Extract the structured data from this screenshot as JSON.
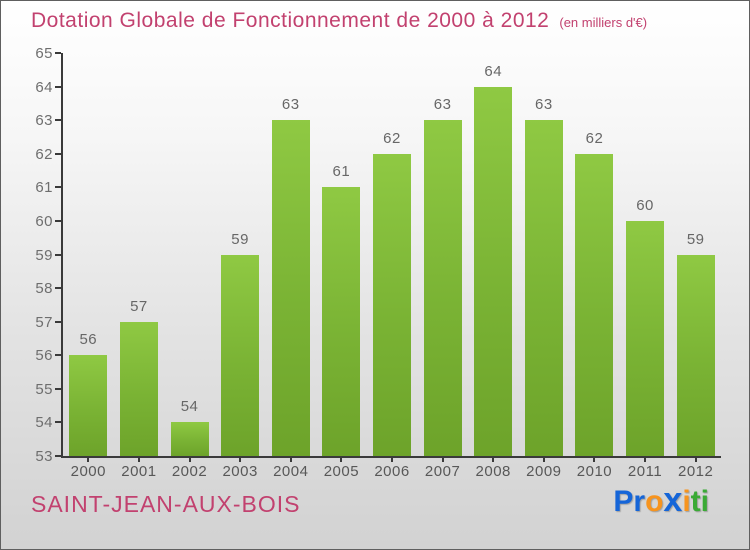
{
  "header": {
    "title": "Dotation Globale de Fonctionnement de 2000 à 2012",
    "subtitle": "(en milliers d'€)"
  },
  "chart_data": {
    "type": "bar",
    "title": "Dotation Globale de Fonctionnement de 2000 à 2012",
    "subtitle": "(en milliers d'€)",
    "categories": [
      "2000",
      "2001",
      "2002",
      "2003",
      "2004",
      "2005",
      "2006",
      "2007",
      "2008",
      "2009",
      "2010",
      "2011",
      "2012"
    ],
    "values": [
      56,
      57,
      54,
      59,
      63,
      61,
      62,
      63,
      64,
      63,
      62,
      60,
      59
    ],
    "xlabel": "",
    "ylabel": "",
    "ylim": [
      53,
      65
    ],
    "ytick_step": 1,
    "grid": false,
    "legend": "none",
    "bar_color_top": "#8fc943",
    "bar_color_bottom": "#6da32a",
    "value_label_color": "#676767",
    "axis_color": "#3a3a3a"
  },
  "footer": {
    "commune": "SAINT-JEAN-AUX-BOIS",
    "logo_word": "Proxiti",
    "logo_letters": [
      {
        "ch": "P",
        "color": "#1565d8",
        "big": false
      },
      {
        "ch": "r",
        "color": "#1565d8",
        "big": false
      },
      {
        "ch": "o",
        "color": "#f7941e",
        "big": false
      },
      {
        "ch": "x",
        "color": "#1565d8",
        "big": true
      },
      {
        "ch": "i",
        "color": "#f7941e",
        "big": false
      },
      {
        "ch": "t",
        "color": "#3aaa35",
        "big": false
      },
      {
        "ch": "i",
        "color": "#3aaa35",
        "big": false
      }
    ]
  },
  "colors": {
    "title_pink": "#c2416f",
    "background_top": "#ffffff",
    "background_bottom": "#d2d2d2"
  }
}
